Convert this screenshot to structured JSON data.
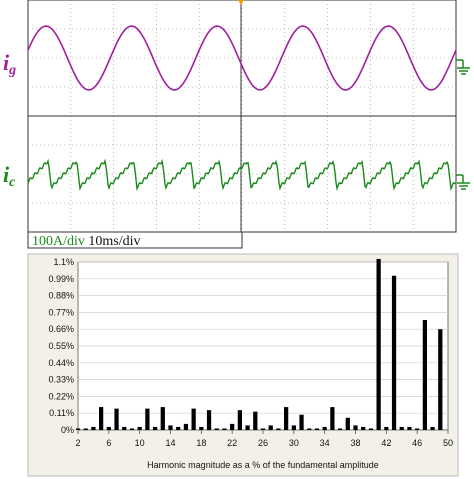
{
  "scope": {
    "top_label_main": "i",
    "top_label_sub": "g",
    "bottom_label_main": "i",
    "bottom_label_sub": "c",
    "scale_amp": "100A/div",
    "scale_time": "10ms/div",
    "colors": {
      "ig": "#a020a0",
      "ic": "#1a8a1a",
      "grid": "#888888",
      "ground": "#1a8a1a",
      "ground_top": "#a020a0"
    },
    "waveform_ig": {
      "cycles": 5,
      "amplitude_div": 1.1
    },
    "waveform_ic": {
      "cycles": 15,
      "amplitude_div": 0.45
    }
  },
  "chart_data": {
    "type": "bar",
    "xlabel": "Harmonic magnitude as a % of the fundamental amplitude",
    "ylabel": "",
    "x_ticks": [
      2,
      6,
      10,
      14,
      18,
      22,
      26,
      30,
      34,
      38,
      42,
      46,
      50
    ],
    "y_ticks": [
      "0%",
      "0.11%",
      "0.22%",
      "0.33%",
      "0.44%",
      "0.55%",
      "0.66%",
      "0.77%",
      "0.88%",
      "0.99%",
      "1.1%"
    ],
    "ylim": [
      0,
      1.1
    ],
    "xlim": [
      2,
      50
    ],
    "grid": true,
    "harmonics": [
      2,
      3,
      4,
      5,
      6,
      7,
      8,
      9,
      10,
      11,
      12,
      13,
      14,
      15,
      16,
      17,
      18,
      19,
      20,
      21,
      22,
      23,
      24,
      25,
      26,
      27,
      28,
      29,
      30,
      31,
      32,
      33,
      34,
      35,
      36,
      37,
      38,
      39,
      40,
      41,
      42,
      43,
      44,
      45,
      46,
      47,
      48,
      49
    ],
    "values": [
      0.01,
      0.01,
      0.02,
      0.15,
      0.02,
      0.14,
      0.02,
      0.01,
      0.02,
      0.14,
      0.02,
      0.15,
      0.03,
      0.02,
      0.04,
      0.14,
      0.02,
      0.13,
      0.01,
      0.01,
      0.04,
      0.13,
      0.03,
      0.12,
      0.01,
      0.03,
      0.01,
      0.15,
      0.03,
      0.1,
      0.01,
      0.01,
      0.02,
      0.15,
      0.01,
      0.08,
      0.03,
      0.02,
      0.01,
      1.12,
      0.02,
      1.01,
      0.02,
      0.02,
      0.01,
      0.72,
      0.02,
      0.66
    ]
  }
}
